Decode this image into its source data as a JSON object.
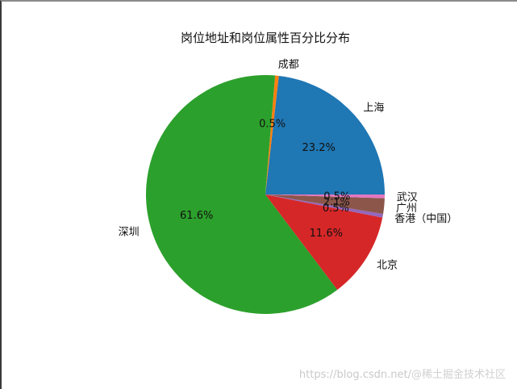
{
  "chart_data": {
    "type": "pie",
    "title": "岗位地址和岗位属性百分比分布",
    "categories": [
      "上海",
      "成都",
      "深圳",
      "北京",
      "香港（中国）",
      "广州",
      "武汉"
    ],
    "values": [
      23.2,
      0.5,
      61.6,
      11.6,
      0.5,
      2.1,
      0.5
    ],
    "labels_pct": [
      "23.2%",
      "0.5%",
      "61.6%",
      "11.6%",
      "0.5%",
      "2.1%",
      "0.5%"
    ],
    "colors": [
      "#1f77b4",
      "#ff7f0e",
      "#2ca02c",
      "#d62728",
      "#9467bd",
      "#8c564b",
      "#e377c2"
    ],
    "start_angle": 0,
    "direction": "counterclockwise",
    "legend": "none"
  },
  "watermark": {
    "url": "https://blog.csdn.net/",
    "brand": "@稀土掘金技术社区"
  }
}
